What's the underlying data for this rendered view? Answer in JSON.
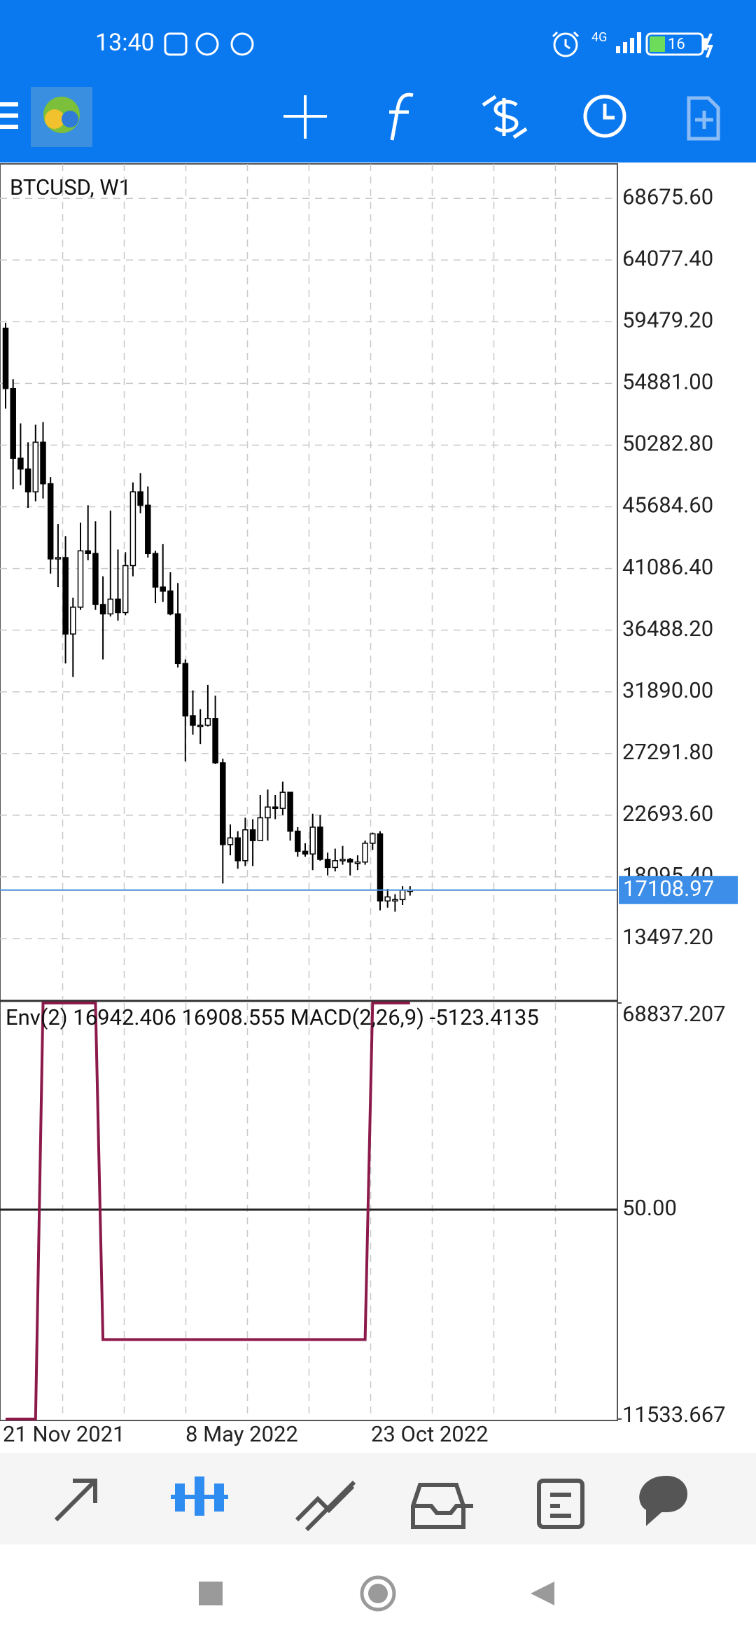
{
  "status_bar": {
    "time": "13:40",
    "network": "4G",
    "battery": "16"
  },
  "chart_data": {
    "type": "candlestick",
    "title": "BTCUSD, W1",
    "candles": [
      [
        59000,
        59400,
        53000,
        54500
      ],
      [
        54500,
        55200,
        47000,
        49300
      ],
      [
        49300,
        51900,
        47300,
        48500
      ],
      [
        48500,
        50500,
        45600,
        46800
      ],
      [
        46800,
        51800,
        46100,
        50500
      ],
      [
        50500,
        52000,
        46300,
        47400
      ],
      [
        47400,
        47900,
        40700,
        41800
      ],
      [
        41800,
        44400,
        39700,
        41900
      ],
      [
        41900,
        43500,
        34000,
        36200
      ],
      [
        36200,
        38900,
        33000,
        38200
      ],
      [
        38200,
        44500,
        38000,
        42400
      ],
      [
        42400,
        45800,
        41700,
        42200
      ],
      [
        42200,
        44600,
        38000,
        38400
      ],
      [
        38400,
        40500,
        34300,
        37700
      ],
      [
        37700,
        45400,
        37500,
        38800
      ],
      [
        38800,
        42500,
        37200,
        37800
      ],
      [
        37800,
        42300,
        37600,
        41300
      ],
      [
        41300,
        47500,
        40500,
        46800
      ],
      [
        46800,
        48200,
        45200,
        45800
      ],
      [
        45800,
        47200,
        41900,
        42200
      ],
      [
        42200,
        42400,
        38500,
        39700
      ],
      [
        39700,
        42900,
        38600,
        39400
      ],
      [
        39400,
        40800,
        37600,
        37700
      ],
      [
        37700,
        40000,
        33700,
        34000
      ],
      [
        34000,
        34300,
        26700,
        30100
      ],
      [
        30100,
        32000,
        28700,
        29400
      ],
      [
        29400,
        30600,
        28000,
        29400
      ],
      [
        29400,
        32400,
        29300,
        29900
      ],
      [
        29900,
        31600,
        26500,
        26600
      ],
      [
        26600,
        26900,
        17600,
        20500
      ],
      [
        20500,
        22000,
        19700,
        21000
      ],
      [
        21000,
        21500,
        18700,
        19300
      ],
      [
        19300,
        22500,
        18900,
        21600
      ],
      [
        21600,
        22400,
        18900,
        20800
      ],
      [
        20800,
        24200,
        20800,
        22500
      ],
      [
        22500,
        24600,
        20800,
        23300
      ],
      [
        23300,
        24200,
        22400,
        23200
      ],
      [
        23200,
        25200,
        22700,
        24400
      ],
      [
        24400,
        24400,
        20800,
        21500
      ],
      [
        21500,
        21800,
        19600,
        20000
      ],
      [
        20000,
        20600,
        19600,
        19800
      ],
      [
        19800,
        22800,
        18600,
        21800
      ],
      [
        21800,
        22700,
        19300,
        19400
      ],
      [
        19400,
        19900,
        18200,
        18800
      ],
      [
        18800,
        20200,
        18500,
        19300
      ],
      [
        19300,
        20400,
        19000,
        19400
      ],
      [
        19400,
        19500,
        18200,
        19200
      ],
      [
        19200,
        19700,
        18600,
        19200
      ],
      [
        19200,
        20800,
        19000,
        20600
      ],
      [
        20600,
        21400,
        20100,
        21300
      ],
      [
        21300,
        21500,
        15600,
        16300
      ],
      [
        16300,
        17200,
        15800,
        16600
      ],
      [
        16300,
        16800,
        15500,
        16400
      ],
      [
        16400,
        17400,
        16000,
        17100
      ],
      [
        17100,
        17400,
        16700,
        17108.97
      ]
    ],
    "bid": 17108.97,
    "ylim": [
      8899,
      71247
    ],
    "yticks": [
      {
        "value": 68675.6,
        "label": "68675.60"
      },
      {
        "value": 64077.4,
        "label": "64077.40"
      },
      {
        "value": 59479.2,
        "label": "59479.20"
      },
      {
        "value": 54881,
        "label": "54881.00"
      },
      {
        "value": 50282.8,
        "label": "50282.80"
      },
      {
        "value": 45684.6,
        "label": "45684.60"
      },
      {
        "value": 41086.4,
        "label": "41086.40"
      },
      {
        "value": 36488.2,
        "label": "36488.20"
      },
      {
        "value": 31890,
        "label": "31890.00"
      },
      {
        "value": 27291.8,
        "label": "27291.80"
      },
      {
        "value": 22693.6,
        "label": "22693.60"
      },
      {
        "value": 18095.4,
        "label": "18095.40"
      },
      {
        "value": 13497.2,
        "label": "13497.20"
      }
    ],
    "x_labels": [
      "21 Nov 2021",
      "8 May 2022",
      "23 Oct 2022"
    ],
    "grid": true,
    "indicator": {
      "label": "Env(2) 16942.406 16908.555 MACD(2,26,9) -5123.4135",
      "color": "#8b1a4a",
      "values": [
        11533.667,
        11533.667,
        11533.667,
        11533.667,
        11533.667,
        68837.207,
        68837.207,
        68837.207,
        68837.207,
        68837.207,
        68837.207,
        68837.207,
        68837.207,
        22480,
        22480,
        22480,
        22480,
        22480,
        22480,
        22480,
        22480,
        22480,
        22480,
        22480,
        22480,
        22480,
        22480,
        22480,
        22480,
        22480,
        22480,
        22480,
        22480,
        22480,
        22480,
        22480,
        22480,
        22480,
        22480,
        22480,
        22480,
        22480,
        22480,
        22480,
        22480,
        22480,
        22480,
        22480,
        22480,
        68837.207,
        68837.207,
        68837.207,
        68837.207,
        68837.207,
        68837.207
      ],
      "ylim": [
        11533.667,
        68837.207
      ],
      "yticks": [
        68837.207,
        11533.667
      ],
      "level_label": "50.00"
    }
  }
}
